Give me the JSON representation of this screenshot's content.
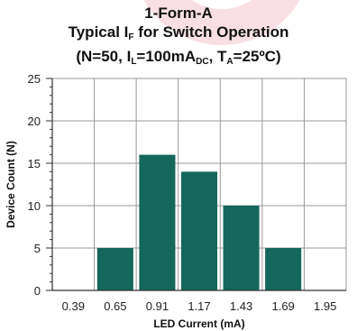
{
  "chart_data": {
    "type": "bar",
    "title": "1-Form-A",
    "subtitle_prefix": "Typical I",
    "subtitle_sub": "F",
    "subtitle_suffix": " for Switch Operation",
    "condition_text": {
      "p1": "(N=50, I",
      "s1": "L",
      "p2": "=100mA",
      "s2": "DC",
      "p3": ", T",
      "s3": "A",
      "p4": "=25ºC)"
    },
    "categories": [
      "0.39",
      "0.65",
      "0.91",
      "1.17",
      "1.43",
      "1.69",
      "1.95"
    ],
    "values": [
      0,
      5,
      16,
      14,
      10,
      5,
      0
    ],
    "xlabel": "LED Current (mA)",
    "ylabel": "Device Count (N)",
    "ylim": [
      0,
      25
    ],
    "yticks": [
      "0",
      "5",
      "10",
      "15",
      "20",
      "25"
    ],
    "grid": true,
    "bar_color": "#14675b",
    "grid_color": "#999999"
  }
}
